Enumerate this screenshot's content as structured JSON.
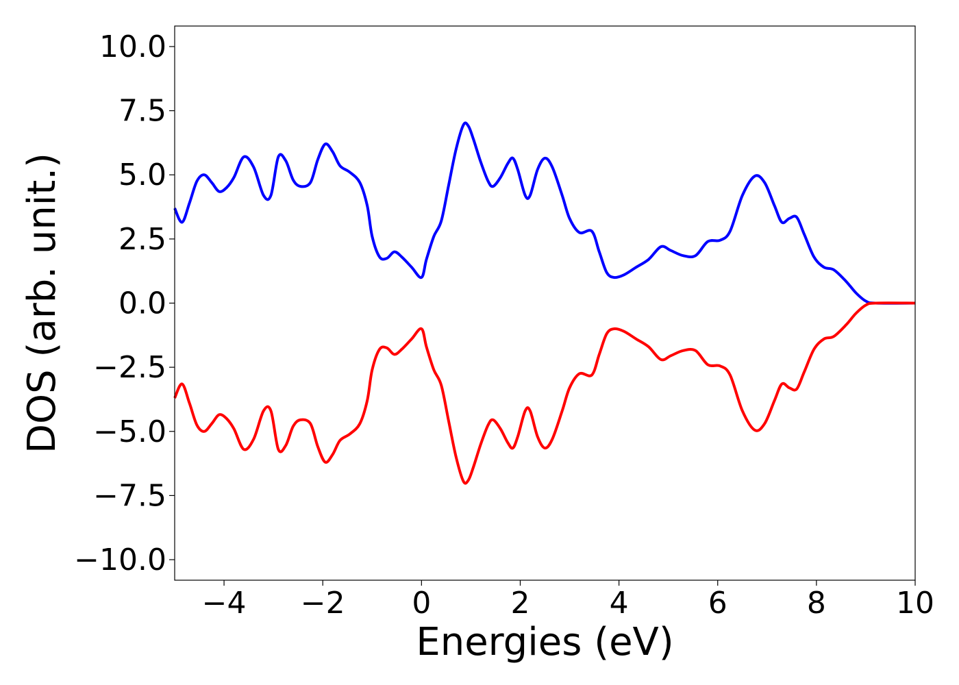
{
  "chart_data": {
    "type": "line",
    "title": "",
    "xlabel": "Energies (eV)",
    "ylabel": "DOS (arb. unit.)",
    "xlim": [
      -5,
      10
    ],
    "ylim": [
      -10.8,
      10.8
    ],
    "xticks": [
      -4,
      -2,
      0,
      2,
      4,
      6,
      8,
      10
    ],
    "xtick_labels": [
      "−4",
      "−2",
      "0",
      "2",
      "4",
      "6",
      "8",
      "10"
    ],
    "yticks": [
      10.0,
      7.5,
      5.0,
      2.5,
      0.0,
      -2.5,
      -5.0,
      -7.5,
      -10.0
    ],
    "ytick_labels": [
      "10.0",
      "7.5",
      "5.0",
      "2.5",
      "0.0",
      "−2.5",
      "−5.0",
      "−7.5",
      "−10.0"
    ],
    "grid": false,
    "legend": "none",
    "series": [
      {
        "color": "#0000ff",
        "points": [
          [
            -5.0,
            3.7
          ],
          [
            -4.85,
            3.15
          ],
          [
            -4.7,
            3.9
          ],
          [
            -4.55,
            4.75
          ],
          [
            -4.4,
            5.0
          ],
          [
            -4.25,
            4.7
          ],
          [
            -4.1,
            4.35
          ],
          [
            -3.95,
            4.5
          ],
          [
            -3.8,
            4.9
          ],
          [
            -3.6,
            5.7
          ],
          [
            -3.4,
            5.3
          ],
          [
            -3.2,
            4.2
          ],
          [
            -3.05,
            4.2
          ],
          [
            -2.9,
            5.7
          ],
          [
            -2.75,
            5.55
          ],
          [
            -2.6,
            4.8
          ],
          [
            -2.45,
            4.55
          ],
          [
            -2.25,
            4.7
          ],
          [
            -2.1,
            5.6
          ],
          [
            -1.95,
            6.2
          ],
          [
            -1.8,
            5.9
          ],
          [
            -1.65,
            5.35
          ],
          [
            -1.45,
            5.1
          ],
          [
            -1.25,
            4.7
          ],
          [
            -1.1,
            3.8
          ],
          [
            -1.0,
            2.6
          ],
          [
            -0.85,
            1.8
          ],
          [
            -0.7,
            1.75
          ],
          [
            -0.55,
            2.0
          ],
          [
            -0.4,
            1.8
          ],
          [
            -0.2,
            1.4
          ],
          [
            0.0,
            1.0
          ],
          [
            0.1,
            1.7
          ],
          [
            0.25,
            2.6
          ],
          [
            0.4,
            3.2
          ],
          [
            0.55,
            4.6
          ],
          [
            0.7,
            6.0
          ],
          [
            0.85,
            6.95
          ],
          [
            0.95,
            6.9
          ],
          [
            1.05,
            6.4
          ],
          [
            1.2,
            5.5
          ],
          [
            1.35,
            4.75
          ],
          [
            1.45,
            4.55
          ],
          [
            1.6,
            4.9
          ],
          [
            1.75,
            5.45
          ],
          [
            1.85,
            5.65
          ],
          [
            1.95,
            5.2
          ],
          [
            2.1,
            4.2
          ],
          [
            2.2,
            4.2
          ],
          [
            2.35,
            5.2
          ],
          [
            2.5,
            5.65
          ],
          [
            2.65,
            5.3
          ],
          [
            2.85,
            4.2
          ],
          [
            3.0,
            3.3
          ],
          [
            3.2,
            2.75
          ],
          [
            3.45,
            2.8
          ],
          [
            3.6,
            2.0
          ],
          [
            3.75,
            1.2
          ],
          [
            3.9,
            1.0
          ],
          [
            4.1,
            1.1
          ],
          [
            4.35,
            1.4
          ],
          [
            4.6,
            1.7
          ],
          [
            4.85,
            2.2
          ],
          [
            5.05,
            2.05
          ],
          [
            5.3,
            1.85
          ],
          [
            5.55,
            1.85
          ],
          [
            5.8,
            2.4
          ],
          [
            6.05,
            2.45
          ],
          [
            6.25,
            2.8
          ],
          [
            6.5,
            4.2
          ],
          [
            6.75,
            4.95
          ],
          [
            6.95,
            4.7
          ],
          [
            7.15,
            3.8
          ],
          [
            7.3,
            3.15
          ],
          [
            7.45,
            3.3
          ],
          [
            7.6,
            3.35
          ],
          [
            7.75,
            2.7
          ],
          [
            7.95,
            1.8
          ],
          [
            8.15,
            1.4
          ],
          [
            8.35,
            1.3
          ],
          [
            8.6,
            0.85
          ],
          [
            8.8,
            0.4
          ],
          [
            9.0,
            0.08
          ],
          [
            9.2,
            0.0
          ],
          [
            10.0,
            0.0
          ]
        ]
      },
      {
        "color": "#ff0000",
        "points": [
          [
            -5.0,
            -3.7
          ],
          [
            -4.85,
            -3.15
          ],
          [
            -4.7,
            -3.9
          ],
          [
            -4.55,
            -4.75
          ],
          [
            -4.4,
            -5.0
          ],
          [
            -4.25,
            -4.7
          ],
          [
            -4.1,
            -4.35
          ],
          [
            -3.95,
            -4.5
          ],
          [
            -3.8,
            -4.9
          ],
          [
            -3.6,
            -5.7
          ],
          [
            -3.4,
            -5.3
          ],
          [
            -3.2,
            -4.2
          ],
          [
            -3.05,
            -4.2
          ],
          [
            -2.9,
            -5.7
          ],
          [
            -2.75,
            -5.55
          ],
          [
            -2.6,
            -4.8
          ],
          [
            -2.45,
            -4.55
          ],
          [
            -2.25,
            -4.7
          ],
          [
            -2.1,
            -5.6
          ],
          [
            -1.95,
            -6.2
          ],
          [
            -1.8,
            -5.9
          ],
          [
            -1.65,
            -5.35
          ],
          [
            -1.45,
            -5.1
          ],
          [
            -1.25,
            -4.7
          ],
          [
            -1.1,
            -3.8
          ],
          [
            -1.0,
            -2.6
          ],
          [
            -0.85,
            -1.8
          ],
          [
            -0.7,
            -1.75
          ],
          [
            -0.55,
            -2.0
          ],
          [
            -0.4,
            -1.8
          ],
          [
            -0.2,
            -1.4
          ],
          [
            0.0,
            -1.0
          ],
          [
            0.1,
            -1.7
          ],
          [
            0.25,
            -2.6
          ],
          [
            0.4,
            -3.2
          ],
          [
            0.55,
            -4.6
          ],
          [
            0.7,
            -6.0
          ],
          [
            0.85,
            -6.95
          ],
          [
            0.95,
            -6.9
          ],
          [
            1.05,
            -6.4
          ],
          [
            1.2,
            -5.5
          ],
          [
            1.35,
            -4.75
          ],
          [
            1.45,
            -4.55
          ],
          [
            1.6,
            -4.9
          ],
          [
            1.75,
            -5.45
          ],
          [
            1.85,
            -5.65
          ],
          [
            1.95,
            -5.2
          ],
          [
            2.1,
            -4.2
          ],
          [
            2.2,
            -4.2
          ],
          [
            2.35,
            -5.2
          ],
          [
            2.5,
            -5.65
          ],
          [
            2.65,
            -5.3
          ],
          [
            2.85,
            -4.2
          ],
          [
            3.0,
            -3.3
          ],
          [
            3.2,
            -2.75
          ],
          [
            3.45,
            -2.8
          ],
          [
            3.6,
            -2.0
          ],
          [
            3.75,
            -1.2
          ],
          [
            3.9,
            -1.0
          ],
          [
            4.1,
            -1.1
          ],
          [
            4.35,
            -1.4
          ],
          [
            4.6,
            -1.7
          ],
          [
            4.85,
            -2.2
          ],
          [
            5.05,
            -2.05
          ],
          [
            5.3,
            -1.85
          ],
          [
            5.55,
            -1.85
          ],
          [
            5.8,
            -2.4
          ],
          [
            6.05,
            -2.45
          ],
          [
            6.25,
            -2.8
          ],
          [
            6.5,
            -4.2
          ],
          [
            6.75,
            -4.95
          ],
          [
            6.95,
            -4.7
          ],
          [
            7.15,
            -3.8
          ],
          [
            7.3,
            -3.15
          ],
          [
            7.45,
            -3.3
          ],
          [
            7.6,
            -3.35
          ],
          [
            7.75,
            -2.7
          ],
          [
            7.95,
            -1.8
          ],
          [
            8.15,
            -1.4
          ],
          [
            8.35,
            -1.3
          ],
          [
            8.6,
            -0.85
          ],
          [
            8.8,
            -0.4
          ],
          [
            9.0,
            -0.08
          ],
          [
            9.2,
            0.0
          ],
          [
            10.0,
            0.0
          ]
        ]
      }
    ]
  }
}
